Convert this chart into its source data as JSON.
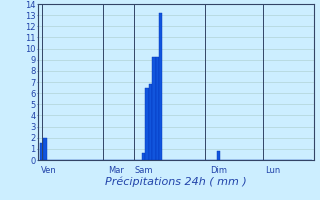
{
  "xlabel": "Précipitations 24h ( mm )",
  "background_color": "#cceeff",
  "bar_color": "#1155dd",
  "bar_edge_color": "#0033bb",
  "ylim": [
    0,
    14
  ],
  "yticks": [
    0,
    1,
    2,
    3,
    4,
    5,
    6,
    7,
    8,
    9,
    10,
    11,
    12,
    13,
    14
  ],
  "grid_color": "#aacccc",
  "tick_color": "#2244aa",
  "label_color": "#2244aa",
  "day_labels": [
    "Ven",
    "Mar",
    "Sam",
    "Dim",
    "Lun"
  ],
  "day_positions": [
    2,
    22,
    30,
    52,
    68
  ],
  "num_bars": 80,
  "bars": [
    1.5,
    2.0,
    0,
    0,
    0,
    0,
    0,
    0,
    0,
    0,
    0,
    0,
    0,
    0,
    0,
    0,
    0,
    0,
    0,
    0,
    0,
    0,
    0,
    0,
    0,
    0,
    0,
    0,
    0,
    0,
    0.6,
    6.5,
    6.8,
    9.2,
    9.2,
    13.2,
    0,
    0,
    0,
    0,
    0,
    0,
    0,
    0,
    0,
    0,
    0,
    0,
    0,
    0,
    0,
    0,
    0.8,
    0,
    0,
    0,
    0,
    0,
    0,
    0,
    0,
    0,
    0,
    0,
    0,
    0,
    0,
    0,
    0,
    0,
    0,
    0,
    0,
    0,
    0,
    0,
    0,
    0,
    0,
    0
  ],
  "vline_positions": [
    0,
    18,
    27,
    48,
    65
  ],
  "xlabel_fontsize": 8,
  "xlabel_style": "italic",
  "tick_fontsize": 6
}
